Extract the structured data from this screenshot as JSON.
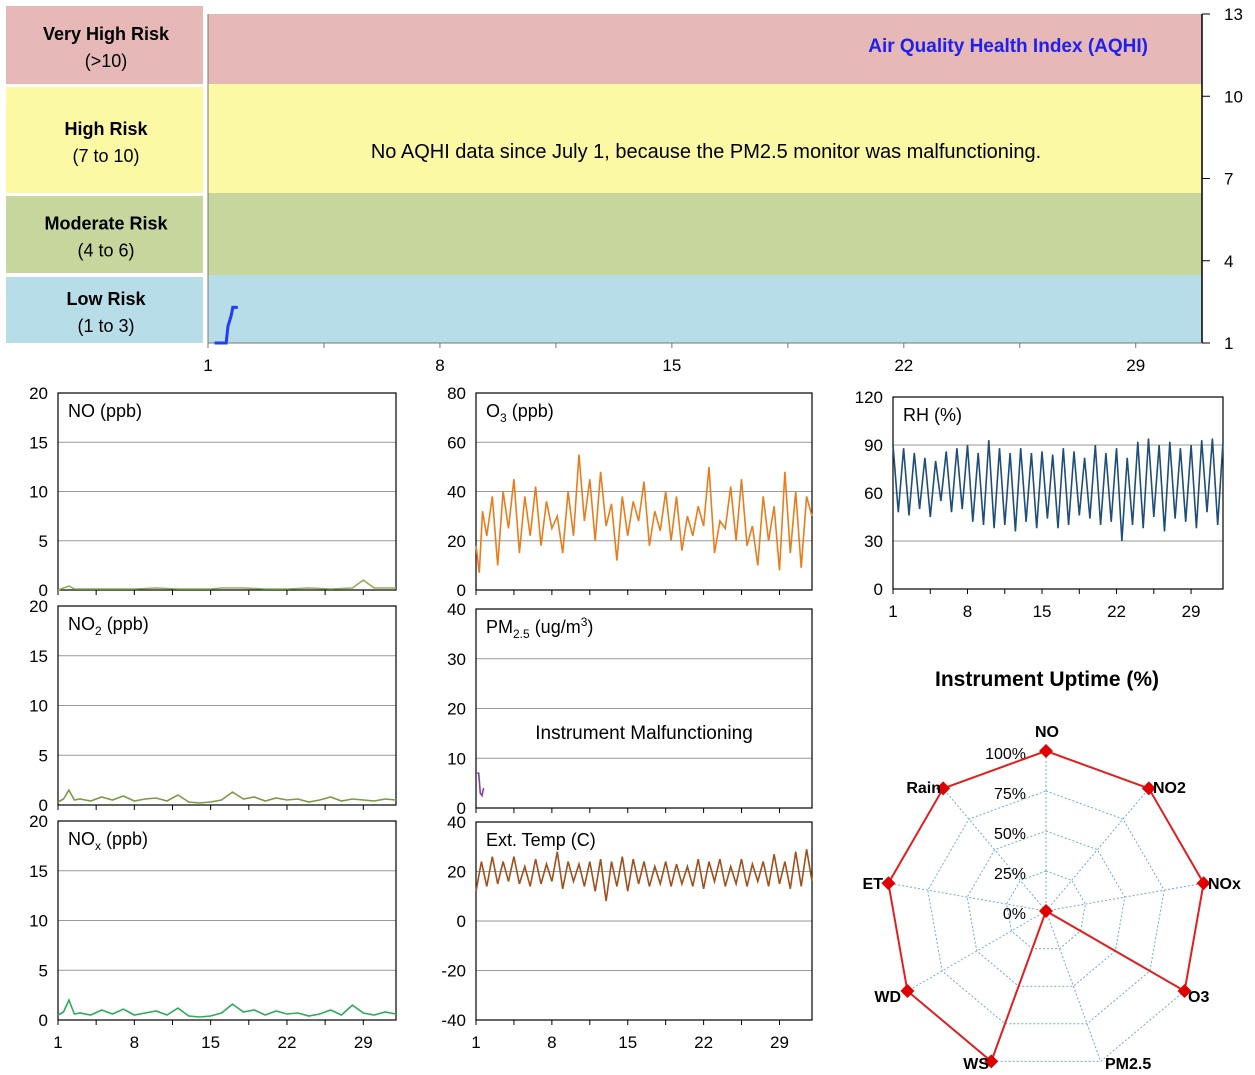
{
  "aqhi": {
    "title": "Air Quality Health Index (AQHI)",
    "note": "No AQHI data since July 1, because the PM2.5 monitor was  malfunctioning.",
    "bands": [
      {
        "name": "Very High Risk",
        "range": "(>10)",
        "color": "#e6b8b8"
      },
      {
        "name": "High Risk",
        "range": "(7 to 10)",
        "color": "#fbf9a3"
      },
      {
        "name": "Moderate Risk",
        "range": "(4 to 6)",
        "color": "#c6d69c"
      },
      {
        "name": "Low Risk",
        "range": "(1 to 3)",
        "color": "#b7dde8"
      }
    ],
    "right_ticks": [
      "13",
      "10",
      "7",
      "4",
      "1"
    ],
    "x_ticks": [
      "1",
      "8",
      "15",
      "22",
      "29"
    ]
  },
  "uptime": {
    "title": "Instrument Uptime (%)"
  },
  "chart_data": [
    {
      "type": "line",
      "id": "aqhi",
      "title": "Air Quality Health Index (AQHI)",
      "x": [
        1.2,
        1.55,
        1.6,
        1.7,
        1.75,
        1.9
      ],
      "values": [
        1,
        1,
        1.6,
        2.0,
        2.3,
        2.3
      ],
      "xlim": [
        1,
        31
      ],
      "ylim": [
        1,
        13
      ],
      "color": "#1f3cff"
    },
    {
      "type": "line",
      "id": "no",
      "label": "NO (ppb)",
      "ylim": [
        0,
        20
      ],
      "yticks": [
        "20",
        "15",
        "10",
        "5",
        "0"
      ],
      "x_ticks": [],
      "color": "#8eae58",
      "x": [
        1,
        1.5,
        2,
        2.5,
        3,
        5,
        8,
        10,
        12,
        15,
        16,
        18,
        20,
        22,
        24,
        26,
        28,
        29,
        30,
        31,
        32
      ],
      "values": [
        0,
        0.2,
        0.4,
        0.1,
        0.1,
        0.1,
        0.1,
        0.2,
        0.1,
        0.1,
        0.2,
        0.2,
        0.1,
        0.1,
        0.2,
        0.1,
        0.2,
        1.0,
        0.2,
        0.2,
        0.2
      ]
    },
    {
      "type": "line",
      "id": "no2",
      "label_main": "NO",
      "label_sub": "2",
      "label_unit": " (ppb)",
      "ylim": [
        0,
        20
      ],
      "yticks": [
        "20",
        "15",
        "10",
        "5",
        "0"
      ],
      "x_ticks": [],
      "color": "#7a9a48",
      "x": [
        1,
        1.5,
        2,
        2.5,
        3,
        4,
        5,
        6,
        7,
        8,
        9,
        10,
        11,
        12,
        13,
        14,
        15,
        16,
        17,
        18,
        19,
        20,
        21,
        22,
        23,
        24,
        25,
        26,
        27,
        28,
        29,
        30,
        31,
        32
      ],
      "values": [
        0.3,
        0.6,
        1.5,
        0.5,
        0.6,
        0.4,
        0.8,
        0.5,
        0.9,
        0.4,
        0.6,
        0.7,
        0.4,
        1.0,
        0.3,
        0.2,
        0.3,
        0.5,
        1.3,
        0.6,
        0.8,
        0.4,
        0.7,
        0.5,
        0.6,
        0.3,
        0.5,
        0.8,
        0.4,
        0.6,
        0.5,
        0.4,
        0.6,
        0.5
      ]
    },
    {
      "type": "line",
      "id": "nox",
      "label_main": "NO",
      "label_sub": "x",
      "label_unit": " (ppb)",
      "ylim": [
        0,
        20
      ],
      "yticks": [
        "20",
        "15",
        "10",
        "5",
        "0"
      ],
      "x_ticks": [
        "1",
        "8",
        "15",
        "22",
        "29"
      ],
      "color": "#2fab5a",
      "x": [
        1,
        1.5,
        2,
        2.5,
        3,
        4,
        5,
        6,
        7,
        8,
        9,
        10,
        11,
        12,
        13,
        14,
        15,
        16,
        17,
        18,
        19,
        20,
        21,
        22,
        23,
        24,
        25,
        26,
        27,
        28,
        29,
        30,
        31,
        32
      ],
      "values": [
        0.5,
        0.8,
        2.0,
        0.6,
        0.7,
        0.5,
        1.0,
        0.6,
        1.1,
        0.5,
        0.7,
        0.9,
        0.5,
        1.2,
        0.4,
        0.3,
        0.4,
        0.7,
        1.6,
        0.8,
        1.0,
        0.5,
        0.9,
        0.6,
        0.7,
        0.4,
        0.6,
        1.0,
        0.5,
        1.5,
        0.7,
        0.5,
        0.8,
        0.6
      ]
    },
    {
      "type": "line",
      "id": "o3",
      "label_main": "O",
      "label_sub": "3",
      "label_unit": " (ppb)",
      "ylim": [
        0,
        80
      ],
      "yticks": [
        "80",
        "60",
        "40",
        "20",
        "0"
      ],
      "x_ticks": [],
      "color": "#e87d1e",
      "x": [
        1,
        1.3,
        1.6,
        2,
        2.5,
        3,
        3.5,
        4,
        4.5,
        5,
        5.5,
        6,
        6.5,
        7,
        7.5,
        8,
        8.5,
        9,
        9.5,
        10,
        10.5,
        11,
        11.5,
        12,
        12.5,
        13,
        13.5,
        14,
        14.5,
        15,
        15.5,
        16,
        16.5,
        17,
        17.5,
        18,
        18.5,
        19,
        19.5,
        20,
        20.5,
        21,
        21.5,
        22,
        22.5,
        23,
        23.5,
        24,
        24.5,
        25,
        25.5,
        26,
        26.5,
        27,
        27.5,
        28,
        28.5,
        29,
        29.5,
        30,
        30.5,
        31,
        31.5,
        32
      ],
      "values": [
        18,
        7,
        32,
        22,
        38,
        10,
        40,
        25,
        45,
        15,
        38,
        22,
        42,
        18,
        36,
        25,
        30,
        15,
        40,
        22,
        55,
        28,
        45,
        20,
        48,
        26,
        35,
        12,
        38,
        22,
        36,
        28,
        44,
        18,
        32,
        24,
        40,
        20,
        38,
        16,
        30,
        22,
        34,
        26,
        50,
        15,
        28,
        25,
        42,
        20,
        45,
        18,
        26,
        10,
        38,
        20,
        34,
        8,
        48,
        15,
        40,
        9,
        38,
        30
      ]
    },
    {
      "type": "line",
      "id": "pm25",
      "label_main": "PM",
      "label_sub": "2.5",
      "label_unit": " (ug/m",
      "label_sup": "3",
      "label_close": ")",
      "note": "Instrument Malfunctioning",
      "ylim": [
        0,
        40
      ],
      "yticks": [
        "40",
        "30",
        "20",
        "10",
        "0"
      ],
      "x_ticks": [],
      "color": "#8a3fae",
      "x": [
        1.1,
        1.25,
        1.4,
        1.55,
        1.7
      ],
      "values": [
        7,
        7,
        3,
        2.5,
        4
      ]
    },
    {
      "type": "line",
      "id": "temp",
      "label": "Ext. Temp (C)",
      "ylim": [
        -40,
        40
      ],
      "yticks": [
        "40",
        "20",
        "0",
        "-20",
        "-40"
      ],
      "x_ticks": [
        "1",
        "8",
        "15",
        "22",
        "29"
      ],
      "color": "#a0501c",
      "x": [
        1,
        1.5,
        2,
        2.5,
        3,
        3.5,
        4,
        4.5,
        5,
        5.5,
        6,
        6.5,
        7,
        7.5,
        8,
        8.5,
        9,
        9.5,
        10,
        10.5,
        11,
        11.5,
        12,
        12.5,
        13,
        13.5,
        14,
        14.5,
        15,
        15.5,
        16,
        16.5,
        17,
        17.5,
        18,
        18.5,
        19,
        19.5,
        20,
        20.5,
        21,
        21.5,
        22,
        22.5,
        23,
        23.5,
        24,
        24.5,
        25,
        25.5,
        26,
        26.5,
        27,
        27.5,
        28,
        28.5,
        29,
        29.5,
        30,
        30.5,
        31,
        31.5,
        32
      ],
      "values": [
        12,
        24,
        14,
        26,
        15,
        24,
        16,
        26,
        15,
        22,
        14,
        25,
        15,
        23,
        16,
        28,
        13,
        24,
        16,
        23,
        14,
        24,
        12,
        25,
        8,
        24,
        14,
        26,
        12,
        25,
        15,
        24,
        14,
        22,
        15,
        24,
        14,
        23,
        15,
        22,
        14,
        25,
        13,
        24,
        16,
        25,
        14,
        22,
        15,
        25,
        14,
        23,
        16,
        24,
        14,
        27,
        15,
        24,
        13,
        28,
        14,
        29,
        16
      ]
    },
    {
      "type": "line",
      "id": "rh",
      "label": "RH (%)",
      "ylim": [
        0,
        120
      ],
      "yticks": [
        "120",
        "90",
        "60",
        "30",
        "0"
      ],
      "x_ticks": [
        "1",
        "8",
        "15",
        "22",
        "29"
      ],
      "color": "#1f4e79",
      "x": [
        1,
        1.5,
        2,
        2.5,
        3,
        3.5,
        4,
        4.5,
        5,
        5.5,
        6,
        6.5,
        7,
        7.5,
        8,
        8.5,
        9,
        9.5,
        10,
        10.5,
        11,
        11.5,
        12,
        12.5,
        13,
        13.5,
        14,
        14.5,
        15,
        15.5,
        16,
        16.5,
        17,
        17.5,
        18,
        18.5,
        19,
        19.5,
        20,
        20.5,
        21,
        21.5,
        22,
        22.5,
        23,
        23.5,
        24,
        24.5,
        25,
        25.5,
        26,
        26.5,
        27,
        27.5,
        28,
        28.5,
        29,
        29.5,
        30,
        30.5,
        31,
        31.5,
        32
      ],
      "values": [
        90,
        48,
        88,
        46,
        85,
        50,
        82,
        45,
        80,
        55,
        86,
        48,
        88,
        50,
        90,
        42,
        85,
        40,
        93,
        38,
        88,
        40,
        85,
        36,
        88,
        42,
        85,
        38,
        86,
        44,
        84,
        38,
        88,
        40,
        86,
        46,
        82,
        44,
        90,
        40,
        85,
        42,
        88,
        30,
        82,
        40,
        92,
        38,
        94,
        45,
        90,
        36,
        92,
        44,
        88,
        42,
        90,
        38,
        93,
        48,
        94,
        40,
        92
      ]
    },
    {
      "type": "radar",
      "id": "uptime",
      "title": "Instrument Uptime (%)",
      "categories": [
        "NO",
        "NO2",
        "NOx",
        "O3",
        "PM2.5",
        "WS",
        "WD",
        "ET",
        "Rain"
      ],
      "values": [
        100,
        100,
        100,
        100,
        0,
        100,
        100,
        100,
        100
      ],
      "ticks": [
        "100%",
        "75%",
        "50%",
        "25%",
        "0%"
      ],
      "rmax": 100,
      "color": "#e02020"
    }
  ]
}
